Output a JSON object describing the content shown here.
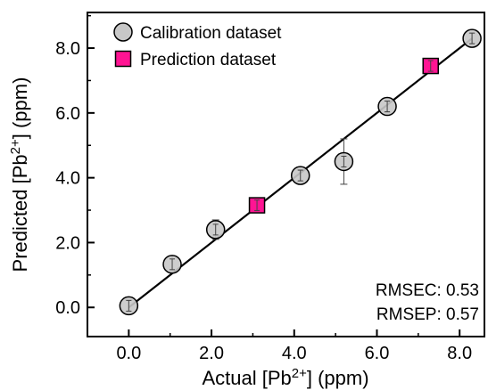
{
  "chart_data": {
    "type": "scatter",
    "xlabel": "Actual [Pb2+] (ppm)",
    "ylabel": "Predicted [Pb2+] (ppm)",
    "xlabel_parts": {
      "pre": "Actual [Pb",
      "sup": "2+",
      "post": "] (ppm)"
    },
    "ylabel_parts": {
      "pre": "Predicted [Pb",
      "sup": "2+",
      "post": "] (ppm)"
    },
    "xlim": [
      -1.0,
      8.6
    ],
    "ylim": [
      -0.9,
      9.1
    ],
    "x_ticks": [
      0,
      2,
      4,
      6,
      8
    ],
    "y_ticks": [
      0,
      2,
      4,
      6,
      8
    ],
    "x_tick_labels": [
      "0.0",
      "2.0",
      "4.0",
      "6.0",
      "8.0"
    ],
    "y_tick_labels": [
      "0.0",
      "2.0",
      "4.0",
      "6.0",
      "8.0"
    ],
    "grid": false,
    "legend_position": "top-left",
    "series": [
      {
        "name": "Calibration dataset",
        "marker": "circle",
        "color": "#c8c8c8",
        "points": [
          {
            "x": 0.0,
            "y": 0.05,
            "err": 0.18
          },
          {
            "x": 1.05,
            "y": 1.33,
            "err": 0.25
          },
          {
            "x": 2.1,
            "y": 2.4,
            "err": 0.3
          },
          {
            "x": 4.15,
            "y": 4.07,
            "err": 0.18
          },
          {
            "x": 5.2,
            "y": 4.5,
            "err": 0.7
          },
          {
            "x": 6.25,
            "y": 6.2,
            "err": 0.18
          },
          {
            "x": 8.3,
            "y": 8.3,
            "err": 0.15
          }
        ]
      },
      {
        "name": "Prediction dataset",
        "marker": "square",
        "color": "#ff1493",
        "points": [
          {
            "x": 3.1,
            "y": 3.15,
            "err": 0.1
          },
          {
            "x": 7.3,
            "y": 7.45,
            "err": 0.08
          }
        ]
      }
    ],
    "fit_line": {
      "x": [
        0.0,
        8.3
      ],
      "y": [
        0.0,
        8.3
      ]
    },
    "annotations": [
      "RMSEC: 0.53",
      "RMSEP: 0.57"
    ]
  }
}
